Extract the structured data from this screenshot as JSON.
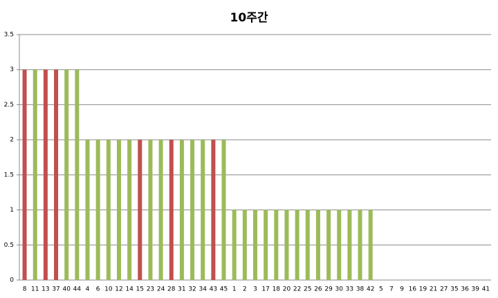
{
  "chart_data": {
    "type": "bar",
    "title": "10주간",
    "categories": [
      "8",
      "11",
      "13",
      "37",
      "40",
      "44",
      "4",
      "6",
      "10",
      "12",
      "14",
      "15",
      "23",
      "24",
      "28",
      "31",
      "32",
      "34",
      "43",
      "45",
      "1",
      "2",
      "3",
      "17",
      "18",
      "20",
      "22",
      "25",
      "26",
      "29",
      "30",
      "33",
      "38",
      "42",
      "5",
      "7",
      "9",
      "16",
      "19",
      "21",
      "27",
      "35",
      "36",
      "39",
      "41"
    ],
    "values": [
      3,
      3,
      3,
      3,
      3,
      3,
      2,
      2,
      2,
      2,
      2,
      2,
      2,
      2,
      2,
      2,
      2,
      2,
      2,
      2,
      1,
      1,
      1,
      1,
      1,
      1,
      1,
      1,
      1,
      1,
      1,
      1,
      1,
      1,
      0,
      0,
      0,
      0,
      0,
      0,
      0,
      0,
      0,
      0,
      0
    ],
    "colors": [
      "#c0504d",
      "#9bbb59",
      "#c0504d",
      "#c0504d",
      "#9bbb59",
      "#9bbb59",
      "#9bbb59",
      "#9bbb59",
      "#9bbb59",
      "#9bbb59",
      "#9bbb59",
      "#c0504d",
      "#9bbb59",
      "#9bbb59",
      "#c0504d",
      "#9bbb59",
      "#9bbb59",
      "#9bbb59",
      "#c0504d",
      "#9bbb59",
      "#9bbb59",
      "#9bbb59",
      "#9bbb59",
      "#9bbb59",
      "#9bbb59",
      "#9bbb59",
      "#9bbb59",
      "#9bbb59",
      "#9bbb59",
      "#9bbb59",
      "#9bbb59",
      "#9bbb59",
      "#9bbb59",
      "#9bbb59",
      "#9bbb59",
      "#9bbb59",
      "#9bbb59",
      "#9bbb59",
      "#9bbb59",
      "#9bbb59",
      "#9bbb59",
      "#9bbb59",
      "#9bbb59",
      "#9bbb59",
      "#9bbb59"
    ],
    "ylim": [
      0,
      3.5
    ],
    "yticks": [
      0,
      0.5,
      1,
      1.5,
      2,
      2.5,
      3,
      3.5
    ],
    "grid": true
  }
}
